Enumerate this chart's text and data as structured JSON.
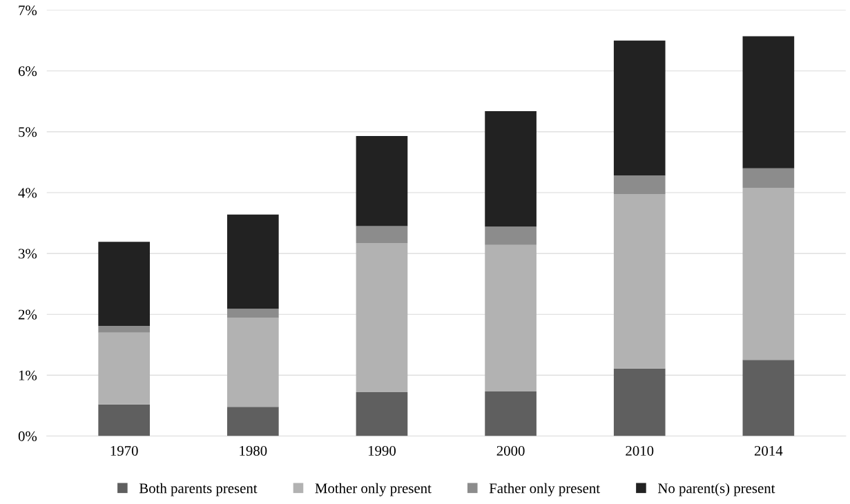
{
  "chart_data": {
    "type": "bar",
    "stacked": true,
    "categories": [
      "1970",
      "1980",
      "1990",
      "2000",
      "2010",
      "2014"
    ],
    "series": [
      {
        "name": "Both parents present",
        "color": "#5f5f5f",
        "values": [
          0.52,
          0.48,
          0.72,
          0.73,
          1.11,
          1.25
        ]
      },
      {
        "name": "Mother only present",
        "color": "#b2b2b2",
        "values": [
          1.18,
          1.46,
          2.45,
          2.41,
          2.86,
          2.83
        ]
      },
      {
        "name": "Father only present",
        "color": "#8c8c8c",
        "values": [
          0.11,
          0.15,
          0.28,
          0.3,
          0.31,
          0.32
        ]
      },
      {
        "name": "No parent(s) present",
        "color": "#222222",
        "values": [
          1.38,
          1.55,
          1.48,
          1.9,
          2.22,
          2.17
        ]
      }
    ],
    "ylim": [
      0,
      7
    ],
    "yticks": [
      {
        "value": 0,
        "label": "0%"
      },
      {
        "value": 1,
        "label": "1%"
      },
      {
        "value": 2,
        "label": "2%"
      },
      {
        "value": 3,
        "label": "3%"
      },
      {
        "value": 4,
        "label": "4%"
      },
      {
        "value": 5,
        "label": "5%"
      },
      {
        "value": 6,
        "label": "6%"
      },
      {
        "value": 7,
        "label": "7%"
      }
    ],
    "grid": "y",
    "legend": "bottom"
  }
}
